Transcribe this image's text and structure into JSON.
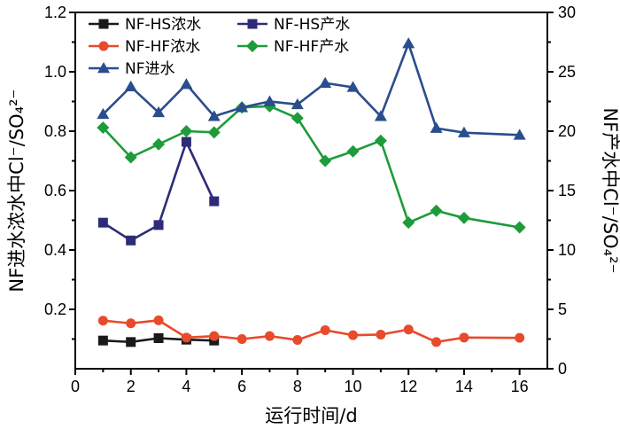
{
  "chart_data": {
    "type": "line",
    "xlabel": "运行时间/d",
    "ylabel_left": "NF进水浓水中Cl⁻/SO₄²⁻",
    "ylabel_right": "NF产水中Cl⁻/SO₄²⁻",
    "xlim": [
      0,
      17
    ],
    "ylim_left": [
      0,
      1.2
    ],
    "ylim_right": [
      0,
      30
    ],
    "x_ticks": [
      "0",
      "2",
      "4",
      "6",
      "8",
      "10",
      "12",
      "14",
      "16"
    ],
    "y_left_ticks": [
      "0.2",
      "0.4",
      "0.6",
      "0.8",
      "1.0",
      "1.2"
    ],
    "y_right_ticks": [
      "0",
      "5",
      "10",
      "15",
      "20",
      "25",
      "30"
    ],
    "legend_position": "top-left",
    "series": [
      {
        "name": "NF-HS浓水",
        "axis": "left",
        "color": "#1a1a1a",
        "marker": "square",
        "x": [
          1,
          2,
          3,
          4,
          5
        ],
        "y": [
          0.095,
          0.09,
          0.103,
          0.098,
          0.095
        ]
      },
      {
        "name": "NF-HS产水",
        "axis": "right",
        "color": "#2e2c78",
        "marker": "square",
        "x": [
          1,
          2,
          3,
          4,
          5
        ],
        "y": [
          12.3,
          10.8,
          12.1,
          19.1,
          14.1
        ]
      },
      {
        "name": "NF-HF浓水",
        "axis": "left",
        "color": "#e84a2c",
        "marker": "circle",
        "x": [
          1,
          2,
          3,
          4,
          5,
          6,
          7,
          8,
          9,
          10,
          11,
          12,
          13,
          14,
          16
        ],
        "y": [
          0.162,
          0.153,
          0.163,
          0.105,
          0.11,
          0.1,
          0.11,
          0.097,
          0.13,
          0.113,
          0.115,
          0.132,
          0.09,
          0.105,
          0.104
        ]
      },
      {
        "name": "NF-HF产水",
        "axis": "right",
        "color": "#1e9b3a",
        "marker": "diamond",
        "x": [
          1,
          2,
          3,
          4,
          5,
          6,
          7,
          8,
          9,
          10,
          11,
          12,
          13,
          14,
          16
        ],
        "y": [
          20.3,
          17.8,
          18.9,
          20.0,
          19.9,
          22.0,
          22.1,
          21.1,
          17.5,
          18.3,
          19.2,
          12.3,
          13.3,
          12.7,
          11.9
        ]
      },
      {
        "name": "NF进水",
        "axis": "left",
        "color": "#2a4d8c",
        "marker": "triangle",
        "x": [
          1,
          2,
          3,
          4,
          5,
          6,
          7,
          8,
          9,
          10,
          11,
          12,
          13,
          14,
          16
        ],
        "y": [
          0.857,
          0.95,
          0.863,
          0.958,
          0.85,
          0.88,
          0.9,
          0.89,
          0.962,
          0.948,
          0.85,
          1.095,
          0.81,
          0.795,
          0.787
        ]
      }
    ]
  }
}
